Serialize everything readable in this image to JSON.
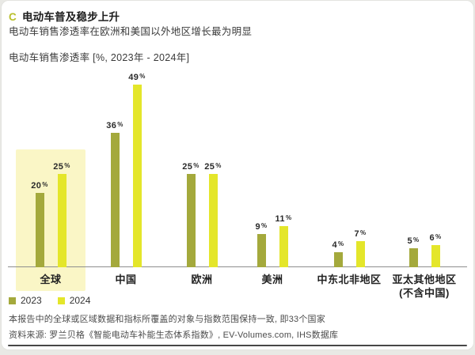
{
  "card": {
    "section_marker": "C",
    "title": "电动车普及稳步上升",
    "subtitle": "电动车销售渗透率在欧洲和美国以外地区增长最为明显"
  },
  "chart_data": {
    "type": "bar",
    "title": "电动车销售渗透率 [%, 2023年 - 2024年]",
    "unit": "%",
    "categories": [
      "全球",
      "中国",
      "欧洲",
      "美洲",
      "中东北非地区",
      "亚太其他地区\n(不含中国)"
    ],
    "series": [
      {
        "name": "2023",
        "color": "#a4a93c",
        "values": [
          20,
          36,
          25,
          9,
          4,
          5
        ]
      },
      {
        "name": "2024",
        "color": "#e4e62a",
        "values": [
          25,
          49,
          25,
          11,
          7,
          6
        ]
      }
    ],
    "highlighted_category": "全球",
    "highlight_color": "#faf6c6",
    "ylim": [
      0,
      52
    ],
    "grid": false,
    "legend_position": "bottom-left",
    "xlabel": "",
    "ylabel": ""
  },
  "footnotes": {
    "coverage": "本报告中的全球或区域数据和指标所覆盖的对象与指数范围保持一致, 即33个国家",
    "source": "资料来源: 罗兰贝格《智能电动车补能生态体系指数》, EV-Volumes.com, IHS数据库"
  },
  "colors": {
    "accent_marker": "#b9bf2b",
    "axis_line": "#8e8e8e",
    "bottom_rule": "#474747"
  }
}
